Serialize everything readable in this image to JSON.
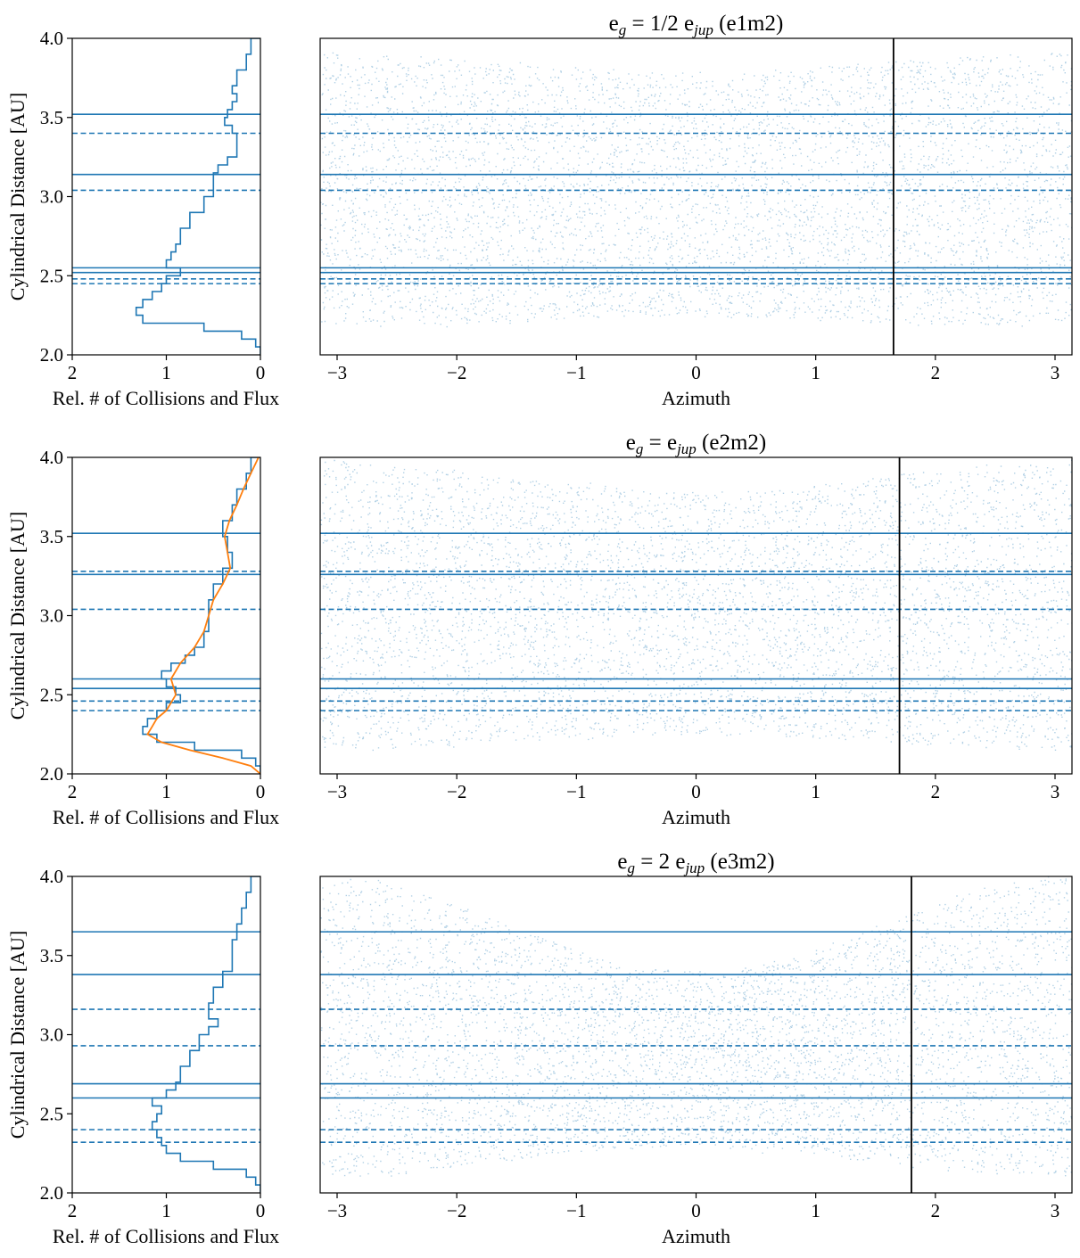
{
  "colors": {
    "series": "#1f77b4",
    "fit": "#ff7f0e",
    "marker_line": "#000000",
    "axes": "#000000",
    "background": "#ffffff"
  },
  "chart_data": [
    {
      "type": "step",
      "panel": "histogram",
      "row": 0,
      "xlabel": "Rel. # of Collisions and Flux",
      "ylabel": "Cylindrical Distance [AU]",
      "xlim": [
        2,
        0
      ],
      "ylim": [
        2.0,
        4.0
      ],
      "xticks": [
        "2",
        "1",
        "0"
      ],
      "yticks": [
        "2.0",
        "2.5",
        "3.0",
        "3.5",
        "4.0"
      ],
      "solid_lines_y": [
        3.52,
        3.14,
        2.55,
        2.52
      ],
      "dashed_lines_y": [
        3.4,
        3.04,
        2.48,
        2.45
      ],
      "histogram": {
        "y": [
          2.0,
          2.05,
          2.1,
          2.15,
          2.2,
          2.25,
          2.3,
          2.35,
          2.4,
          2.45,
          2.5,
          2.55,
          2.6,
          2.65,
          2.7,
          2.8,
          2.9,
          3.0,
          3.05,
          3.1,
          3.15,
          3.2,
          3.25,
          3.3,
          3.4,
          3.45,
          3.5,
          3.55,
          3.6,
          3.65,
          3.7,
          3.8,
          3.9,
          4.0
        ],
        "x": [
          0.0,
          0.05,
          0.2,
          0.6,
          1.25,
          1.32,
          1.25,
          1.15,
          1.05,
          1.0,
          0.85,
          1.0,
          0.95,
          0.9,
          0.85,
          0.75,
          0.6,
          0.5,
          0.5,
          0.5,
          0.45,
          0.35,
          0.25,
          0.25,
          0.3,
          0.38,
          0.35,
          0.3,
          0.25,
          0.3,
          0.25,
          0.15,
          0.1,
          0.0
        ]
      }
    },
    {
      "type": "scatter",
      "panel": "azimuth",
      "row": 0,
      "title": {
        "base": "e",
        "sub1": "g",
        "mid": " = 1/2 e",
        "sub2": "jup",
        "tail": " (e1m2)"
      },
      "xlabel": "Azimuth",
      "xlim": [
        -3.1416,
        3.1416
      ],
      "ylim": [
        2.0,
        4.0
      ],
      "xticks": [
        "−3",
        "−2",
        "−1",
        "0",
        "1",
        "2",
        "3"
      ],
      "vertical_line_x": 1.65,
      "solid_lines_y": [
        3.52,
        3.14,
        2.55,
        2.52
      ],
      "dashed_lines_y": [
        3.4,
        3.04,
        2.48,
        2.45
      ],
      "envelope": {
        "outer_edge_mid": 3.85,
        "outer_edge_amp": 0.06,
        "inner_edge_mid": 2.21,
        "inner_edge_amp": 0.03
      }
    },
    {
      "type": "step",
      "panel": "histogram",
      "row": 1,
      "xlabel": "Rel. # of Collisions and Flux",
      "ylabel": "Cylindrical Distance [AU]",
      "xlim": [
        2,
        0
      ],
      "ylim": [
        2.0,
        4.0
      ],
      "xticks": [
        "2",
        "1",
        "0"
      ],
      "yticks": [
        "2.0",
        "2.5",
        "3.0",
        "3.5",
        "4.0"
      ],
      "solid_lines_y": [
        3.52,
        3.26,
        2.6,
        2.54
      ],
      "dashed_lines_y": [
        3.28,
        3.04,
        2.46,
        2.4
      ],
      "histogram": {
        "y": [
          2.0,
          2.05,
          2.1,
          2.15,
          2.2,
          2.25,
          2.3,
          2.35,
          2.4,
          2.45,
          2.5,
          2.55,
          2.6,
          2.65,
          2.7,
          2.75,
          2.8,
          2.9,
          3.0,
          3.1,
          3.2,
          3.3,
          3.4,
          3.5,
          3.6,
          3.7,
          3.8,
          3.9,
          4.0
        ],
        "x": [
          0.0,
          0.05,
          0.2,
          0.7,
          1.1,
          1.25,
          1.2,
          1.1,
          1.0,
          0.85,
          0.9,
          1.0,
          1.05,
          0.95,
          0.8,
          0.7,
          0.6,
          0.55,
          0.55,
          0.5,
          0.4,
          0.3,
          0.35,
          0.4,
          0.3,
          0.25,
          0.15,
          0.1,
          0.0
        ]
      },
      "fit_curve": {
        "y": [
          2.0,
          2.05,
          2.1,
          2.15,
          2.2,
          2.25,
          2.3,
          2.35,
          2.4,
          2.5,
          2.6,
          2.7,
          2.8,
          2.9,
          3.0,
          3.1,
          3.2,
          3.3,
          3.4,
          3.5,
          3.6,
          3.7,
          3.8,
          3.9,
          4.0
        ],
        "x": [
          0.0,
          0.1,
          0.4,
          0.75,
          1.05,
          1.2,
          1.15,
          1.1,
          1.0,
          0.9,
          0.95,
          0.85,
          0.7,
          0.6,
          0.55,
          0.5,
          0.4,
          0.32,
          0.35,
          0.38,
          0.33,
          0.25,
          0.18,
          0.1,
          0.02
        ]
      }
    },
    {
      "type": "scatter",
      "panel": "azimuth",
      "row": 1,
      "title": {
        "base": "e",
        "sub1": "g",
        "mid": " = e",
        "sub2": "jup",
        "tail": " (e2m2)"
      },
      "xlabel": "Azimuth",
      "xlim": [
        -3.1416,
        3.1416
      ],
      "ylim": [
        2.0,
        4.0
      ],
      "xticks": [
        "−3",
        "−2",
        "−1",
        "0",
        "1",
        "2",
        "3"
      ],
      "vertical_line_x": 1.7,
      "solid_lines_y": [
        3.52,
        3.26,
        2.6,
        2.54
      ],
      "dashed_lines_y": [
        3.28,
        3.04,
        2.46,
        2.4
      ],
      "envelope": {
        "outer_edge_mid": 3.88,
        "outer_edge_amp": 0.1,
        "inner_edge_mid": 2.2,
        "inner_edge_amp": 0.05
      }
    },
    {
      "type": "step",
      "panel": "histogram",
      "row": 2,
      "xlabel": "Rel. # of Collisions and Flux",
      "ylabel": "Cylindrical Distance [AU]",
      "xlim": [
        2,
        0
      ],
      "ylim": [
        2.0,
        4.0
      ],
      "xticks": [
        "2",
        "1",
        "0"
      ],
      "yticks": [
        "2.0",
        "2.5",
        "3.0",
        "3.5",
        "4.0"
      ],
      "solid_lines_y": [
        3.65,
        3.38,
        2.69,
        2.6
      ],
      "dashed_lines_y": [
        3.16,
        2.93,
        2.4,
        2.32
      ],
      "histogram": {
        "y": [
          2.0,
          2.05,
          2.1,
          2.15,
          2.2,
          2.25,
          2.3,
          2.35,
          2.4,
          2.45,
          2.5,
          2.55,
          2.6,
          2.65,
          2.7,
          2.8,
          2.9,
          3.0,
          3.05,
          3.1,
          3.2,
          3.3,
          3.4,
          3.5,
          3.6,
          3.7,
          3.8,
          3.9,
          4.0
        ],
        "x": [
          0.0,
          0.05,
          0.15,
          0.5,
          0.85,
          1.0,
          1.05,
          1.1,
          1.15,
          1.1,
          1.05,
          1.15,
          1.0,
          0.9,
          0.85,
          0.75,
          0.65,
          0.55,
          0.45,
          0.55,
          0.5,
          0.4,
          0.3,
          0.3,
          0.25,
          0.2,
          0.15,
          0.1,
          0.0
        ]
      }
    },
    {
      "type": "scatter",
      "panel": "azimuth",
      "row": 2,
      "title": {
        "base": "e",
        "sub1": "g",
        "mid": " = 2 e",
        "sub2": "jup",
        "tail": " (e3m2)"
      },
      "xlabel": "Azimuth",
      "xlim": [
        -3.1416,
        3.1416
      ],
      "ylim": [
        2.0,
        4.0
      ],
      "xticks": [
        "−3",
        "−2",
        "−1",
        "0",
        "1",
        "2",
        "3"
      ],
      "vertical_line_x": 1.8,
      "solid_lines_y": [
        3.65,
        3.38,
        2.69,
        2.6
      ],
      "dashed_lines_y": [
        3.16,
        2.93,
        2.4,
        2.32
      ],
      "envelope": {
        "outer_edge_mid": 3.7,
        "outer_edge_amp": 0.3,
        "inner_edge_mid": 2.2,
        "inner_edge_amp": 0.1
      }
    }
  ]
}
